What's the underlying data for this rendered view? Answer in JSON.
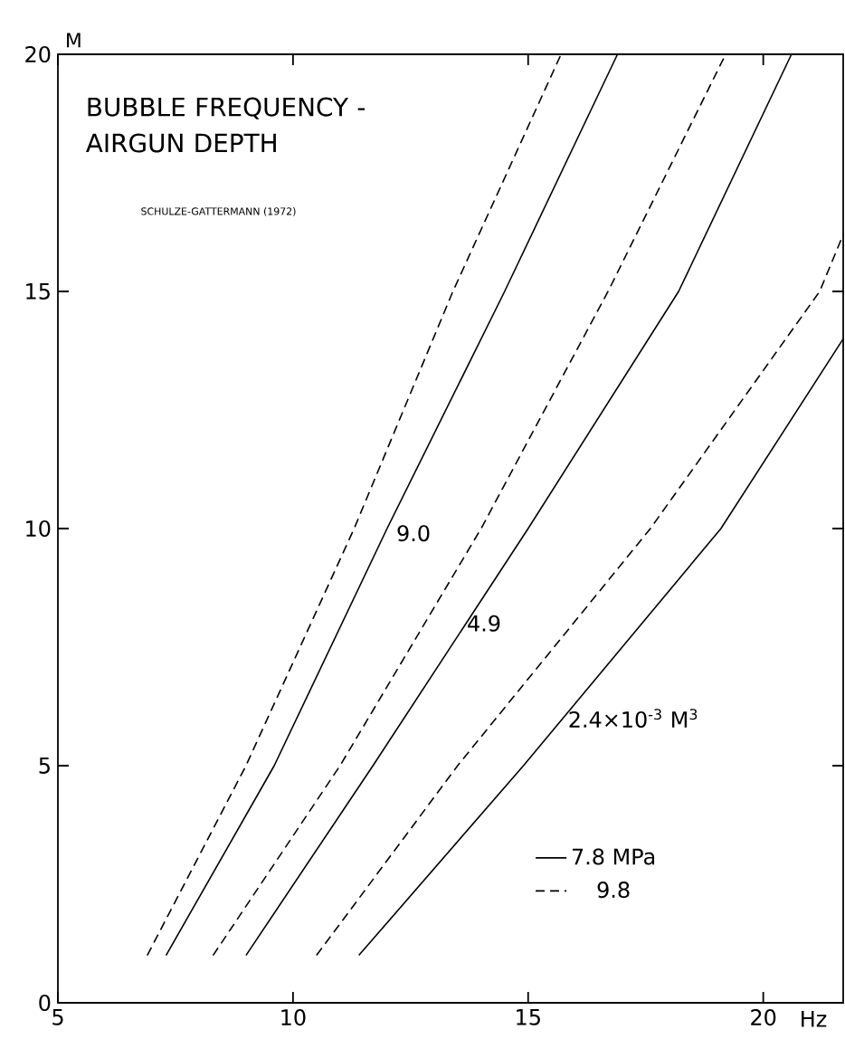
{
  "chart_data": {
    "type": "line",
    "title": "BUBBLE FREQUENCY -AIRGUN DEPTH",
    "subtitle": "SCHULZE-GATTERMANN (1972)",
    "xlabel": "Hz",
    "ylabel": "M",
    "xlim": [
      5,
      21.7
    ],
    "ylim": [
      0,
      20
    ],
    "xticks": [
      5,
      10,
      15,
      20
    ],
    "yticks": [
      0,
      5,
      10,
      15,
      20
    ],
    "grid": false,
    "legend": "bottom right",
    "marker": "none",
    "series": [
      {
        "name": "7.8 MPa",
        "color": "#000000",
        "line_style": "solid",
        "x": [
          7.3,
          9.6,
          12.0,
          14.5,
          16.9
        ],
        "values": [
          1,
          5,
          10,
          15,
          20
        ]
      },
      {
        "name": "9.8",
        "color": "#000000",
        "line_style": "dashed",
        "x": [
          6.9,
          9.0,
          11.3,
          13.4,
          15.7
        ],
        "values": [
          1,
          5,
          10,
          15,
          20
        ]
      },
      {
        "color": "#000000",
        "line_style": "dashed",
        "x": [
          8.3,
          11.0,
          14.0,
          16.7,
          19.2
        ],
        "values": [
          1,
          5,
          10,
          15,
          20
        ]
      },
      {
        "color": "#000000",
        "line_style": "solid",
        "x": [
          9.0,
          11.7,
          15.0,
          18.2,
          20.6
        ],
        "values": [
          1,
          5,
          10,
          15,
          20
        ]
      },
      {
        "color": "#000000",
        "line_style": "dashed",
        "x": [
          10.5,
          13.5,
          17.6,
          21.2,
          21.7
        ],
        "values": [
          1,
          5,
          10,
          15,
          16.2
        ]
      },
      {
        "color": "#000000",
        "line_style": "solid",
        "x": [
          11.4,
          14.9,
          19.1,
          21.7
        ],
        "values": [
          1,
          5,
          10,
          14.0
        ]
      }
    ],
    "annotations": [
      {
        "text": "9.0",
        "x": 12.15,
        "y": 9.9
      },
      {
        "text": "4.9",
        "x": 13.65,
        "y": 8.0
      },
      {
        "text": "2.4×10$^{-3}$ M$^{3}$",
        "x": 15.8,
        "y": 6.0
      }
    ]
  }
}
